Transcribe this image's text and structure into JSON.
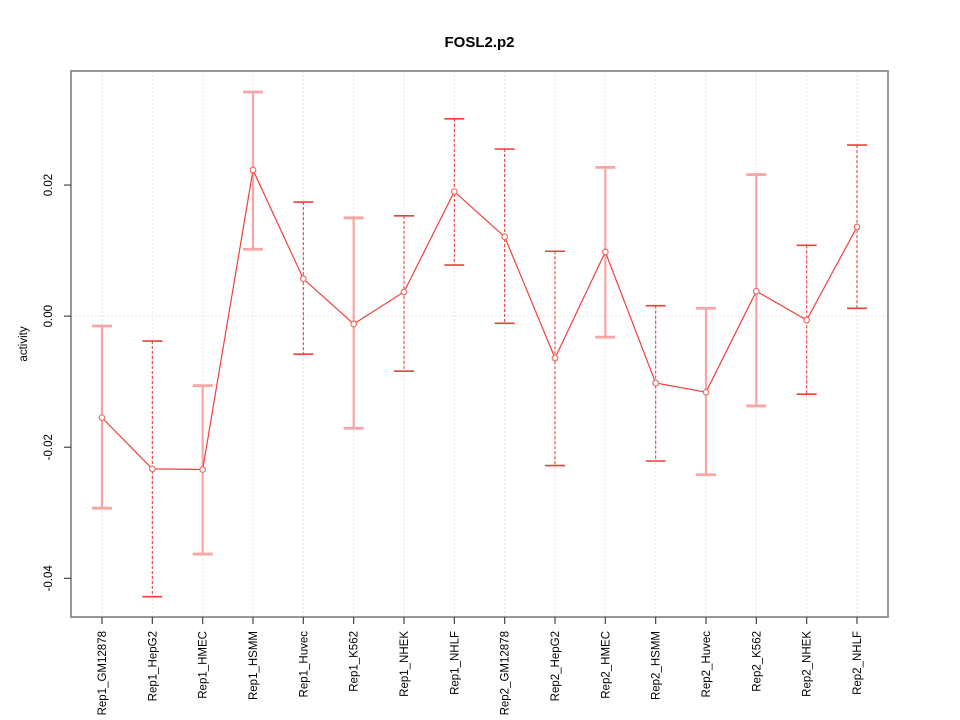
{
  "chart_data": {
    "type": "line",
    "title": "FOSL2.p2",
    "xlabel": "",
    "ylabel": "activity",
    "ylim": [
      -0.0459,
      0.0374
    ],
    "yticks": [
      -0.04,
      -0.02,
      0.0,
      0.02
    ],
    "ytick_labels": [
      "-0.04",
      "-0.02",
      "0.00",
      "0.02"
    ],
    "grid": {
      "vertical_gridlines": "dotted, one per category",
      "horizontal_gridlines": "dotted zero line only",
      "zero_line_value": 0
    },
    "legend_position": "none",
    "categories": [
      "Rep1_GM12878",
      "Rep1_HepG2",
      "Rep1_HMEC",
      "Rep1_HSMM",
      "Rep1_Huvec",
      "Rep1_K562",
      "Rep1_NHEK",
      "Rep1_NHLF",
      "Rep2_GM12878",
      "Rep2_HepG2",
      "Rep2_HMEC",
      "Rep2_HSMM",
      "Rep2_Huvec",
      "Rep2_K562",
      "Rep2_NHEK",
      "Rep2_NHLF"
    ],
    "series": [
      {
        "name": "activity",
        "marker": "open-circle",
        "values": [
          -0.0155,
          -0.0233,
          -0.0234,
          0.0223,
          0.0057,
          -0.0012,
          0.0037,
          0.019,
          0.0121,
          -0.0064,
          0.0098,
          -0.0102,
          -0.0116,
          0.0038,
          -0.0006,
          0.0136
        ],
        "ci_low": [
          -0.0293,
          -0.0428,
          -0.0363,
          0.0102,
          -0.0058,
          -0.0171,
          -0.0084,
          0.0078,
          -0.0011,
          -0.0228,
          -0.0032,
          -0.0221,
          -0.0242,
          -0.0137,
          -0.0119,
          0.0012
        ],
        "ci_high": [
          -0.0015,
          -0.0038,
          -0.0106,
          0.0342,
          0.0174,
          0.015,
          0.0153,
          0.0301,
          0.0255,
          0.0099,
          0.0227,
          0.0016,
          0.0012,
          0.0216,
          0.0108,
          0.0261
        ],
        "bar_shades": [
          "light",
          "dark",
          "light",
          "light",
          "dark",
          "light",
          "dark",
          "dark",
          "dark",
          "dark",
          "light",
          "dark",
          "light",
          "light",
          "dark",
          "dark"
        ]
      }
    ],
    "colors": {
      "line": "#ef413c",
      "point_stroke": "#f26c65",
      "error_bar_dark": "#ee3e3a",
      "error_bar_light": "#f8a5a3",
      "gridline": "#dcdcdc",
      "zero_line": "#d9d9d9",
      "plot_border": "#8c8c8c",
      "tick": "#444444",
      "text": "#000000",
      "background": "#ffffff"
    }
  }
}
